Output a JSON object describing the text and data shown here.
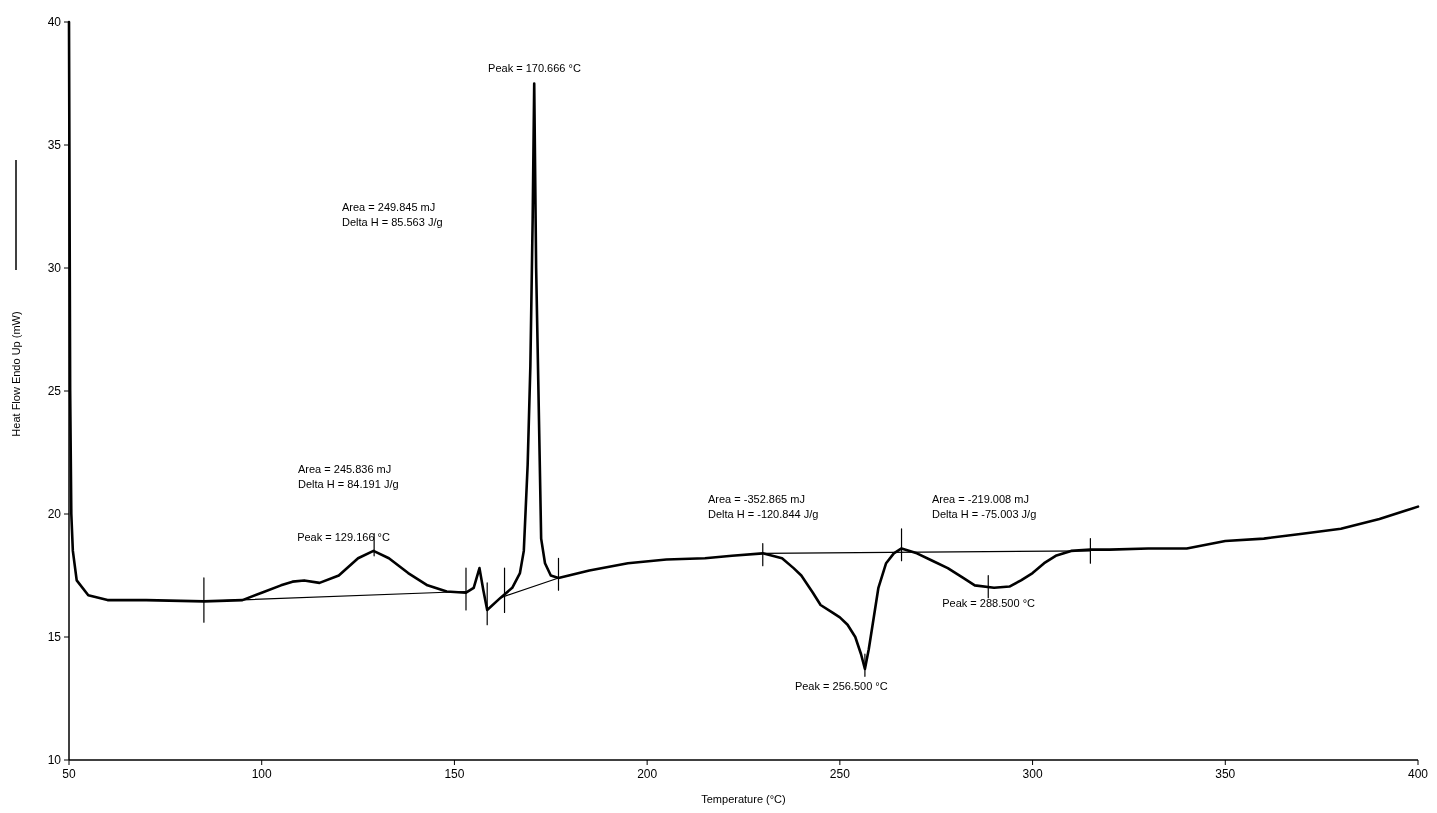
{
  "chart_data": {
    "type": "line",
    "xlabel": "Temperature (°C)",
    "ylabel": "Heat Flow Endo Up (mW)",
    "xlim": [
      50,
      400
    ],
    "ylim": [
      10,
      40
    ],
    "xticks": [
      50,
      100,
      150,
      200,
      250,
      300,
      350,
      400
    ],
    "yticks": [
      10,
      15,
      20,
      25,
      30,
      35,
      40
    ],
    "grid": false,
    "series": [
      {
        "color": "#000000",
        "x": [
          50,
          50.3,
          50.6,
          51,
          52,
          55,
          60,
          70,
          85,
          95,
          100,
          105,
          108,
          111,
          115,
          120,
          125,
          129,
          133,
          138,
          143,
          148,
          153,
          155,
          156.5,
          157.5,
          158.5,
          162,
          165,
          167,
          168,
          169,
          169.7,
          170.3,
          170.7,
          171.2,
          171.8,
          172.5,
          173.5,
          175,
          177,
          185,
          195,
          205,
          215,
          222,
          230,
          235,
          238,
          240,
          243,
          245,
          248,
          250,
          252,
          254,
          255.5,
          256.5,
          257.5,
          258.5,
          260,
          262,
          264,
          266,
          270,
          274,
          278,
          282,
          285,
          290,
          294,
          297,
          300,
          303,
          306,
          310,
          315,
          320,
          330,
          340,
          350,
          360,
          370,
          380,
          390,
          400
        ],
        "values": [
          40,
          25,
          20,
          18.5,
          17.3,
          16.7,
          16.5,
          16.5,
          16.45,
          16.5,
          16.8,
          17.1,
          17.25,
          17.3,
          17.2,
          17.5,
          18.2,
          18.5,
          18.2,
          17.6,
          17.1,
          16.85,
          16.8,
          17.0,
          17.8,
          16.9,
          16.1,
          16.6,
          17.0,
          17.6,
          18.5,
          22,
          26,
          32,
          37.5,
          30,
          25,
          19,
          18,
          17.5,
          17.4,
          17.7,
          18.0,
          18.15,
          18.2,
          18.3,
          18.4,
          18.2,
          17.8,
          17.5,
          16.8,
          16.3,
          16.0,
          15.8,
          15.5,
          15.0,
          14.3,
          13.7,
          14.5,
          15.5,
          17.0,
          18.0,
          18.4,
          18.6,
          18.4,
          18.1,
          17.8,
          17.4,
          17.1,
          17.0,
          17.05,
          17.3,
          17.6,
          18.0,
          18.3,
          18.5,
          18.55,
          18.55,
          18.6,
          18.6,
          18.9,
          19.0,
          19.2,
          19.4,
          19.8,
          20.3
        ]
      },
      {
        "color": "#000000",
        "x": [
          85,
          153,
          null,
          162,
          177,
          null,
          230,
          315
        ],
        "values": [
          16.45,
          16.85,
          null,
          16.6,
          17.4,
          null,
          18.4,
          18.5
        ]
      },
      {
        "color": "#000000",
        "x": [
          85,
          85,
          null,
          129.166,
          129.166,
          null,
          153,
          153,
          null,
          158.5,
          158.5,
          null,
          163,
          163,
          null,
          177,
          177,
          null,
          230,
          230,
          null,
          256.5,
          256.5,
          null,
          266,
          266,
          null,
          288.5,
          288.5,
          null,
          315,
          315
        ],
        "values": [
          15.6,
          17.4,
          null,
          18.3,
          19.2,
          null,
          16.1,
          17.8,
          null,
          15.5,
          17.2,
          null,
          16.0,
          17.8,
          null,
          16.9,
          18.2,
          null,
          17.9,
          18.8,
          null,
          13.4,
          14.3,
          null,
          18.1,
          19.4,
          null,
          16.6,
          17.5,
          null,
          18.0,
          19.0
        ]
      }
    ],
    "annotations": [
      {
        "text": "Peak = 170.666 °C",
        "x": 170.666,
        "y": 37.5
      },
      "Area = 249.845 mJ\nDelta H = 85.563 J/g",
      "Area = 245.836 mJ\nDelta H = 84.191 J/g",
      {
        "text": "Peak = 129.166 °C",
        "x": 129.166,
        "y": 18.5
      },
      "Area = -352.865 mJ\nDelta H = -120.844 J/g",
      {
        "text": "Peak = 256.500 °C",
        "x": 256.5,
        "y": 13.7
      },
      "Area = -219.008 mJ\nDelta H = -75.003 J/g",
      {
        "text": "Peak = 288.500 °C",
        "x": 288.5,
        "y": 17.0
      }
    ]
  }
}
